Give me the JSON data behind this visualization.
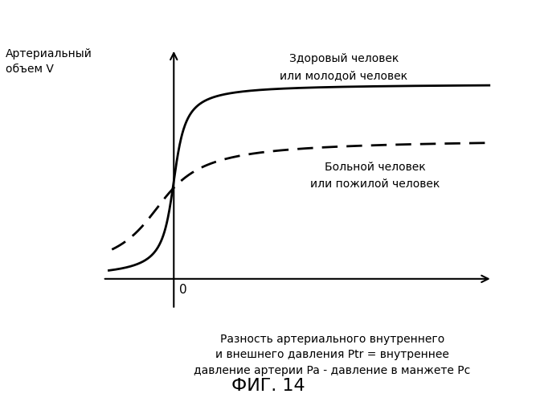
{
  "title": "ФИГ. 14",
  "ylabel": "Артериальный\nобъем V",
  "xlabel": "Разность артериального внутреннего\nи внешнего давления Ptr = внутреннее\nдавление артерии Pa - давление в манжете Pc",
  "label_healthy": "Здоровый человек\nили молодой человек",
  "label_sick": "Больной человек\nили пожилой человек",
  "background_color": "#ffffff",
  "curve_color": "#000000",
  "title_fontsize": 16,
  "label_fontsize": 10,
  "zero_label": "0"
}
